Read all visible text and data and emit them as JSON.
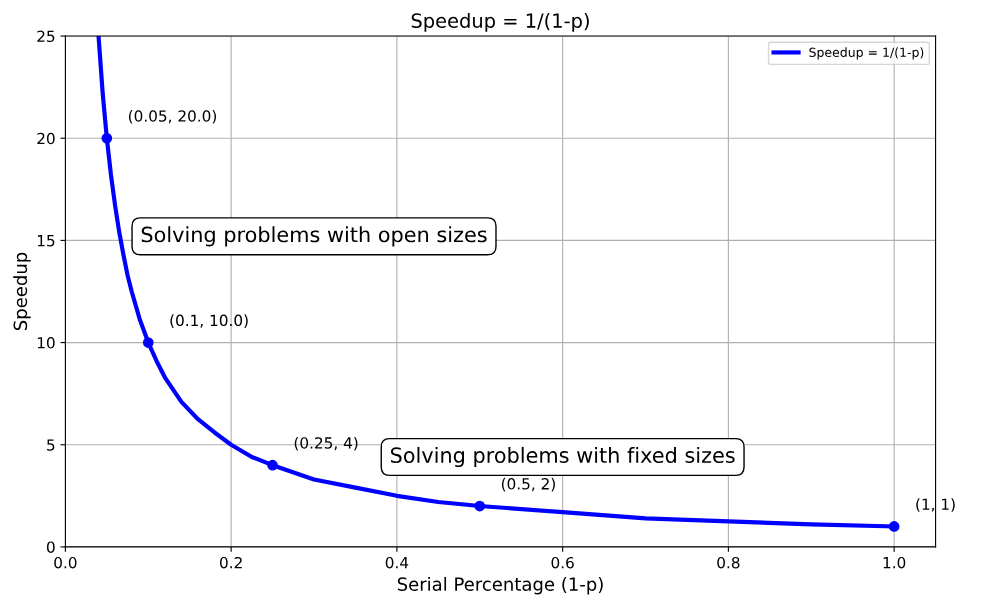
{
  "chart_data": {
    "type": "line",
    "title": "Speedup = 1/(1-p)",
    "xlabel": "Serial Percentage (1-p)",
    "ylabel": "Speedup",
    "series": [
      {
        "name": "Speedup = 1/(1-p)",
        "color": "#0000ff",
        "x": [
          0.04,
          0.045,
          0.05,
          0.055,
          0.06,
          0.065,
          0.07,
          0.075,
          0.08,
          0.09,
          0.1,
          0.11,
          0.12,
          0.13,
          0.14,
          0.16,
          0.18,
          0.2,
          0.225,
          0.25,
          0.3,
          0.35,
          0.4,
          0.45,
          0.5,
          0.6,
          0.7,
          0.8,
          0.9,
          1.0
        ],
        "values": [
          25,
          22.2,
          20,
          18.2,
          16.7,
          15.4,
          14.3,
          13.3,
          12.5,
          11.1,
          10,
          9.1,
          8.3,
          7.7,
          7.1,
          6.25,
          5.6,
          5,
          4.4,
          4,
          3.3,
          2.9,
          2.5,
          2.2,
          2,
          1.7,
          1.4,
          1.25,
          1.1,
          1
        ]
      },
      {
        "color": "#0000ff",
        "type": "scatter",
        "marker": "circle",
        "x": [
          0.05,
          0.1,
          0.25,
          0.5,
          1.0
        ],
        "values": [
          20,
          10,
          4,
          2,
          1
        ],
        "value_labels": [
          "(0.05, 20.0)",
          "(0.1, 10.0)",
          "(0.25, 4)",
          "(0.5, 2)",
          "(1, 1)"
        ]
      }
    ],
    "annotations": [
      "Solving problems with open sizes",
      "Solving problems with fixed sizes"
    ],
    "xlim": [
      0,
      1.05
    ],
    "ylim": [
      0,
      25
    ],
    "xticks": [
      {
        "value": 0,
        "label": "0.0"
      },
      0.2,
      0.4,
      0.6,
      0.8,
      {
        "value": 1,
        "label": "1.0"
      }
    ],
    "yticks": [
      0,
      5,
      10,
      15,
      20,
      25
    ],
    "grid": true,
    "legend": "top right"
  }
}
